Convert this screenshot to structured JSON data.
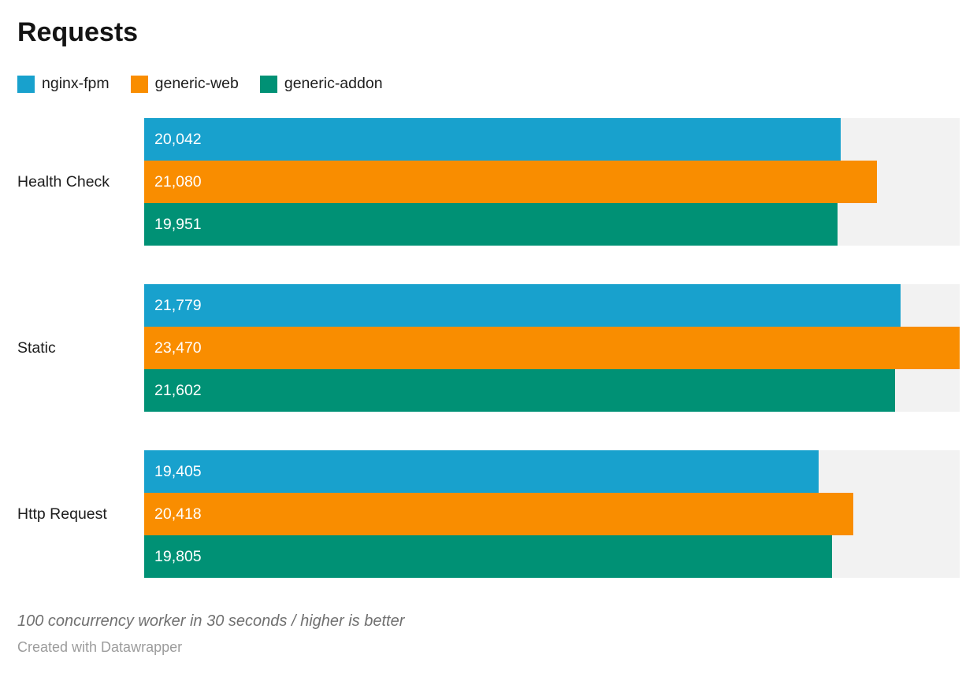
{
  "title": "Requests",
  "legend": {
    "items": [
      {
        "label": "nginx-fpm",
        "color": "#18a1cd"
      },
      {
        "label": "generic-web",
        "color": "#f98d00"
      },
      {
        "label": "generic-addon",
        "color": "#009175"
      }
    ]
  },
  "chart_data": {
    "type": "bar",
    "orientation": "horizontal",
    "title": "Requests",
    "categories": [
      "Health Check",
      "Static",
      "Http Request"
    ],
    "series": [
      {
        "name": "nginx-fpm",
        "color": "#18a1cd",
        "values": [
          20042,
          21779,
          19405
        ]
      },
      {
        "name": "generic-web",
        "color": "#f98d00",
        "values": [
          21080,
          23470,
          20418
        ]
      },
      {
        "name": "generic-addon",
        "color": "#009175",
        "values": [
          19951,
          21602,
          19805
        ]
      }
    ],
    "xlim": [
      0,
      23470
    ],
    "grid": false,
    "legend_position": "top",
    "value_label_position": "inside-left",
    "value_label_format": "thousands-comma",
    "track_color": "#f2f2f2"
  },
  "footer": {
    "note": "100 concurrency worker in 30 seconds / higher is better",
    "credit": "Created with Datawrapper"
  }
}
